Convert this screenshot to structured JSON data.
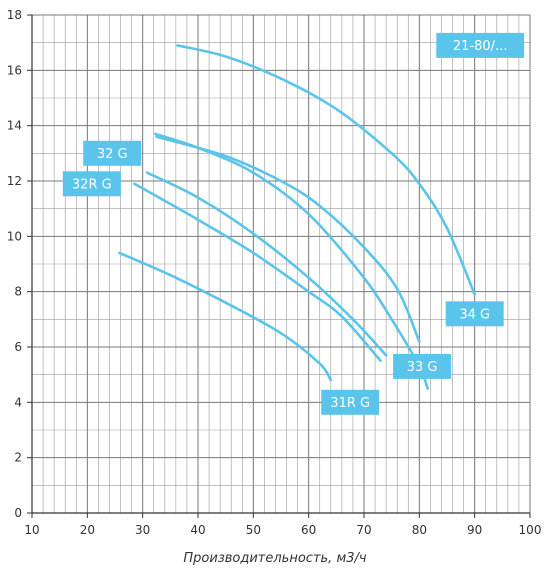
{
  "chart_data": {
    "type": "line",
    "title": "",
    "xlabel": "Производительность, м3/ч",
    "ylabel": "",
    "xlim": [
      10,
      100
    ],
    "ylim": [
      0,
      18
    ],
    "x_ticks": [
      10,
      20,
      30,
      40,
      50,
      60,
      70,
      80,
      90,
      100
    ],
    "y_ticks": [
      0,
      2,
      4,
      6,
      8,
      10,
      12,
      14,
      16,
      18
    ],
    "x_minor_step": 2,
    "y_minor_step": 1,
    "grid": true,
    "line_color": "#5BC4EA",
    "label_color": "#5BC4EA",
    "grid_color": "#9a9a9a",
    "series": [
      {
        "name": "21-80/...",
        "points": [
          [
            36.3,
            16.9
          ],
          [
            45,
            16.5
          ],
          [
            55,
            15.7
          ],
          [
            65,
            14.6
          ],
          [
            75,
            13.0
          ],
          [
            80,
            11.9
          ],
          [
            85,
            10.3
          ],
          [
            90,
            7.9
          ]
        ]
      },
      {
        "name": "32 G",
        "points": [
          [
            32.3,
            13.7
          ],
          [
            40,
            13.2
          ],
          [
            50,
            12.3
          ],
          [
            60,
            10.8
          ],
          [
            70,
            8.5
          ],
          [
            75,
            7.0
          ],
          [
            80,
            5.3
          ],
          [
            81.5,
            4.5
          ]
        ]
      },
      {
        "name": "32R G",
        "points": [
          [
            30.8,
            12.3
          ],
          [
            40,
            11.4
          ],
          [
            50,
            10.1
          ],
          [
            60,
            8.5
          ],
          [
            68,
            7.0
          ],
          [
            74,
            5.7
          ]
        ]
      },
      {
        "name": "33 G",
        "points": [
          [
            28.5,
            11.9
          ],
          [
            40,
            10.6
          ],
          [
            50,
            9.4
          ],
          [
            60,
            8.0
          ],
          [
            66,
            7.1
          ],
          [
            73,
            5.5
          ]
        ]
      },
      {
        "name": "34 G",
        "points": [
          [
            32.5,
            13.6
          ],
          [
            45,
            12.9
          ],
          [
            55,
            12.0
          ],
          [
            62,
            11.1
          ],
          [
            70,
            9.6
          ],
          [
            76,
            8.1
          ],
          [
            80,
            6.2
          ]
        ]
      },
      {
        "name": "31R G",
        "points": [
          [
            25.8,
            9.4
          ],
          [
            35,
            8.6
          ],
          [
            45,
            7.6
          ],
          [
            55,
            6.5
          ],
          [
            62,
            5.4
          ],
          [
            64,
            4.8
          ]
        ]
      }
    ],
    "labels": [
      {
        "text": "21-80/...",
        "x": 91,
        "y": 16.9
      },
      {
        "text": "32 G",
        "x": 24.5,
        "y": 13.0
      },
      {
        "text": "32R G",
        "x": 20.8,
        "y": 11.9
      },
      {
        "text": "34 G",
        "x": 90,
        "y": 7.2
      },
      {
        "text": "33 G",
        "x": 80.5,
        "y": 5.3
      },
      {
        "text": "31R G",
        "x": 67.5,
        "y": 4.0
      }
    ]
  }
}
